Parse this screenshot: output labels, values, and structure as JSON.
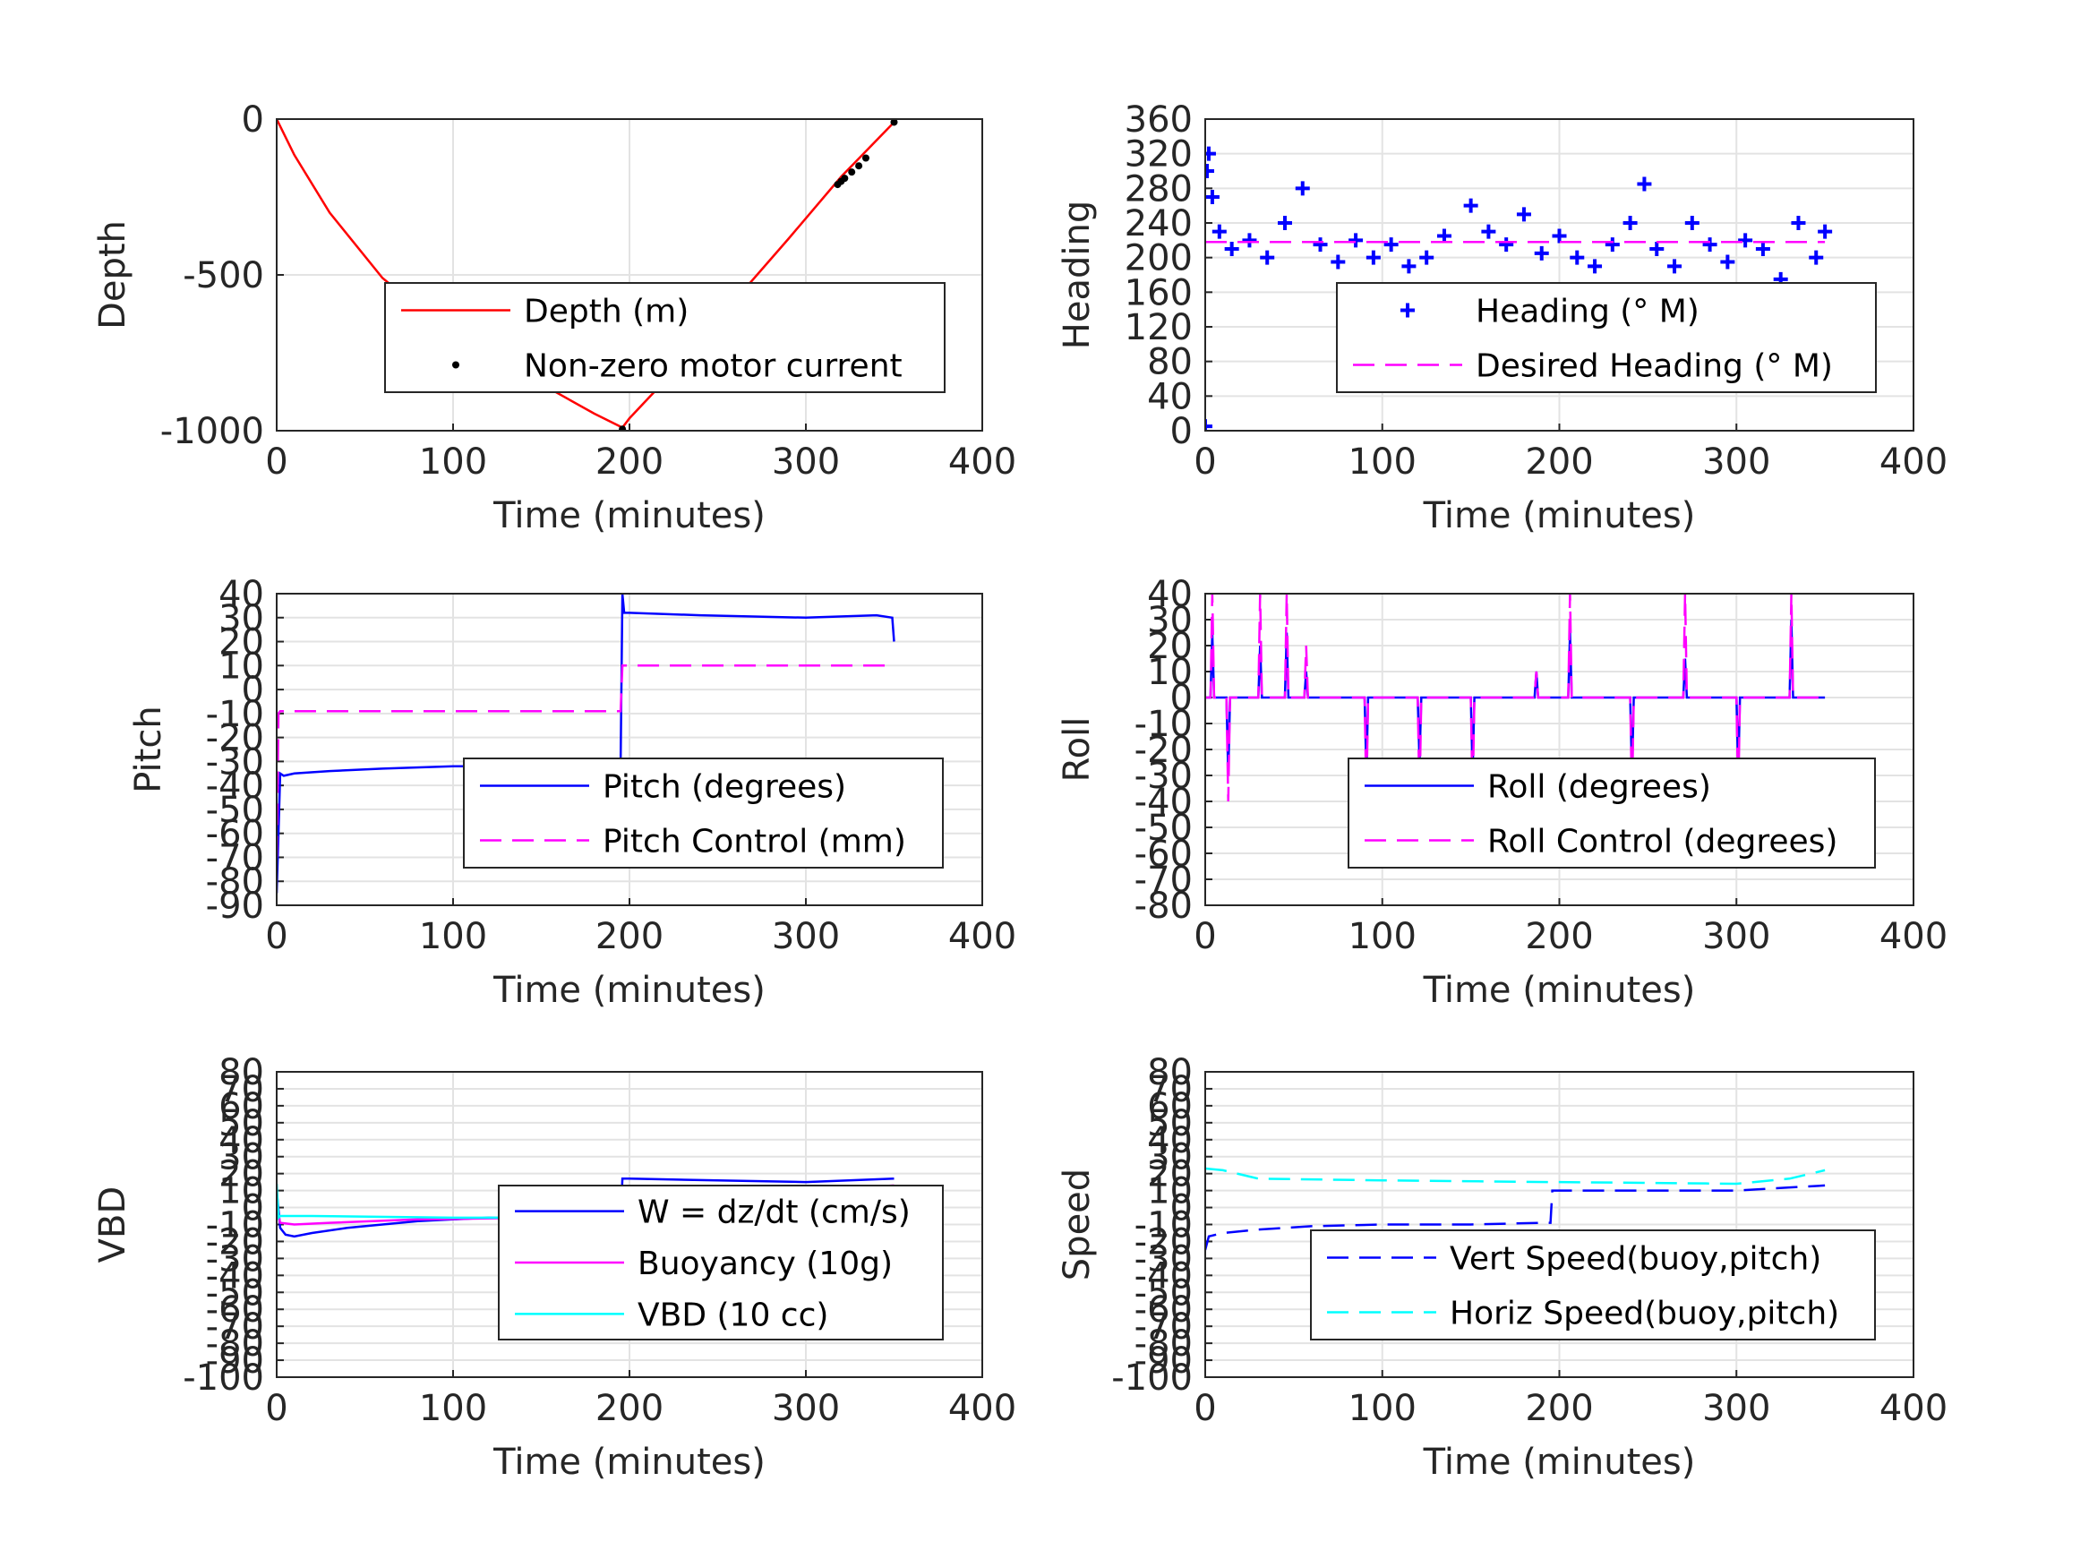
{
  "chart_data": [
    {
      "id": "depth",
      "type": "line",
      "xlabel": "Time (minutes)",
      "ylabel": "Depth",
      "xlim": [
        0,
        400
      ],
      "ylim": [
        -1000,
        0
      ],
      "xticks": [
        "0",
        "100",
        "200",
        "300",
        "400"
      ],
      "yticks": [
        "0",
        "-500",
        "-1000"
      ],
      "grid": true,
      "legend_position": "center-right",
      "series": [
        {
          "name": "Depth (m)",
          "style": "solid",
          "color": "#ff0000",
          "x": [
            0,
            10,
            30,
            60,
            90,
            120,
            150,
            180,
            196,
            200,
            230,
            260,
            290,
            320,
            350
          ],
          "y": [
            0,
            -115,
            -300,
            -510,
            -650,
            -760,
            -850,
            -945,
            -990,
            -960,
            -780,
            -580,
            -385,
            -185,
            -10
          ]
        },
        {
          "name": "Non-zero motor current",
          "style": "dot",
          "color": "#000000",
          "x": [
            196,
            318,
            320,
            322,
            326,
            330,
            334,
            350
          ],
          "y": [
            -995,
            -210,
            -200,
            -190,
            -170,
            -150,
            -125,
            -10
          ]
        }
      ]
    },
    {
      "id": "heading",
      "type": "scatter",
      "xlabel": "Time (minutes)",
      "ylabel": "Heading",
      "xlim": [
        0,
        400
      ],
      "ylim": [
        0,
        360
      ],
      "xticks": [
        "0",
        "100",
        "200",
        "300",
        "400"
      ],
      "yticks": [
        "0",
        "40",
        "80",
        "120",
        "160",
        "200",
        "240",
        "280",
        "320",
        "360"
      ],
      "grid": true,
      "legend_position": "lower-right",
      "series": [
        {
          "name": "Heading (° M)",
          "style": "plus",
          "color": "#0000ff",
          "x": [
            0,
            1,
            2,
            4,
            8,
            15,
            25,
            35,
            45,
            55,
            65,
            75,
            85,
            95,
            105,
            115,
            125,
            135,
            142,
            150,
            160,
            170,
            180,
            190,
            200,
            210,
            220,
            230,
            240,
            248,
            255,
            265,
            275,
            285,
            295,
            305,
            315,
            325,
            335,
            345,
            350,
            352
          ],
          "y": [
            5,
            300,
            320,
            270,
            230,
            210,
            220,
            200,
            240,
            280,
            215,
            195,
            220,
            200,
            215,
            190,
            200,
            225,
            150,
            260,
            230,
            215,
            250,
            205,
            225,
            200,
            190,
            215,
            240,
            285,
            210,
            190,
            240,
            215,
            195,
            220,
            210,
            175,
            240,
            200,
            230,
            160
          ]
        },
        {
          "name": "Desired Heading (° M)",
          "style": "dash",
          "color": "#ff00ff",
          "x": [
            0,
            350
          ],
          "y": [
            218,
            218
          ]
        }
      ]
    },
    {
      "id": "pitch",
      "type": "line",
      "xlabel": "Time (minutes)",
      "ylabel": "Pitch",
      "xlim": [
        0,
        400
      ],
      "ylim": [
        -90,
        40
      ],
      "xticks": [
        "0",
        "100",
        "200",
        "300",
        "400"
      ],
      "yticks": [
        "40",
        "30",
        "20",
        "10",
        "0",
        "-10",
        "-20",
        "-30",
        "-40",
        "-50",
        "-60",
        "-70",
        "-80",
        "-90"
      ],
      "grid": true,
      "legend_position": "center-right",
      "series": [
        {
          "name": "Pitch (degrees)",
          "style": "solid",
          "color": "#0000ff",
          "x": [
            0,
            1,
            2,
            4,
            10,
            30,
            60,
            100,
            150,
            190,
            195,
            196,
            197,
            200,
            240,
            300,
            340,
            349,
            350
          ],
          "y": [
            -85,
            -60,
            -35,
            -36,
            -35,
            -34,
            -33,
            -32,
            -32,
            -31,
            -31,
            40,
            32,
            32,
            31,
            30,
            31,
            30,
            20
          ]
        },
        {
          "name": "Pitch Control (mm)",
          "style": "dash",
          "color": "#ff00ff",
          "x": [
            0,
            1,
            2,
            100,
            195,
            196,
            200,
            300,
            350
          ],
          "y": [
            -70,
            -10,
            -9,
            -9,
            -9,
            10,
            10,
            10,
            10
          ]
        }
      ]
    },
    {
      "id": "roll",
      "type": "line",
      "xlabel": "Time (minutes)",
      "ylabel": "Roll",
      "xlim": [
        0,
        400
      ],
      "ylim": [
        -80,
        40
      ],
      "xticks": [
        "0",
        "100",
        "200",
        "300",
        "400"
      ],
      "yticks": [
        "40",
        "30",
        "20",
        "10",
        "0",
        "-10",
        "-20",
        "-30",
        "-40",
        "-50",
        "-60",
        "-70",
        "-80"
      ],
      "grid": true,
      "legend_position": "lower-right",
      "series": [
        {
          "name": "Roll (degrees)",
          "style": "solid",
          "color": "#0000ff",
          "x": [
            0,
            3,
            4,
            5,
            12,
            13,
            14,
            30,
            31,
            32,
            45,
            46,
            47,
            56,
            57,
            58,
            90,
            91,
            92,
            120,
            121,
            122,
            150,
            151,
            152,
            186,
            187,
            188,
            205,
            206,
            207,
            240,
            241,
            242,
            270,
            271,
            272,
            300,
            301,
            302,
            330,
            331,
            332,
            350
          ],
          "y": [
            0,
            0,
            25,
            0,
            0,
            -30,
            0,
            0,
            20,
            0,
            0,
            25,
            0,
            0,
            10,
            0,
            0,
            -30,
            0,
            0,
            -25,
            0,
            0,
            -30,
            0,
            0,
            10,
            0,
            0,
            25,
            0,
            0,
            -30,
            0,
            0,
            15,
            0,
            0,
            -30,
            0,
            0,
            30,
            0,
            0
          ]
        },
        {
          "name": "Roll Control (degrees)",
          "style": "dash",
          "color": "#ff00ff",
          "x": [
            0,
            3,
            4,
            5,
            12,
            13,
            14,
            30,
            31,
            32,
            45,
            46,
            47,
            56,
            57,
            58,
            90,
            91,
            92,
            120,
            121,
            122,
            150,
            151,
            152,
            186,
            187,
            188,
            205,
            206,
            207,
            240,
            241,
            242,
            270,
            271,
            272,
            300,
            301,
            302,
            330,
            331,
            332,
            350
          ],
          "y": [
            0,
            0,
            40,
            0,
            0,
            -40,
            0,
            0,
            40,
            0,
            0,
            40,
            0,
            0,
            20,
            0,
            0,
            -40,
            0,
            0,
            -40,
            0,
            0,
            -40,
            0,
            0,
            10,
            0,
            0,
            40,
            0,
            0,
            -40,
            0,
            0,
            40,
            0,
            0,
            -40,
            0,
            0,
            40,
            0,
            0
          ]
        }
      ]
    },
    {
      "id": "vbd",
      "type": "line",
      "xlabel": "Time (minutes)",
      "ylabel": "VBD",
      "xlim": [
        0,
        400
      ],
      "ylim": [
        -100,
        80
      ],
      "xticks": [
        "0",
        "100",
        "200",
        "300",
        "400"
      ],
      "yticks": [
        "80",
        "70",
        "60",
        "50",
        "40",
        "30",
        "20",
        "10",
        "0",
        "-10",
        "-20",
        "-30",
        "-40",
        "-50",
        "-60",
        "-70",
        "-80",
        "-90",
        "-100"
      ],
      "grid": true,
      "legend_position": "lower-right",
      "series": [
        {
          "name": "W = dz/dt (cm/s)",
          "style": "solid",
          "color": "#0000ff",
          "x": [
            0,
            2,
            5,
            10,
            20,
            40,
            80,
            120,
            160,
            195,
            196,
            200,
            250,
            300,
            350
          ],
          "y": [
            10,
            -12,
            -16,
            -17,
            -15,
            -12,
            -8,
            -6,
            -7,
            -8,
            17,
            17,
            16,
            15,
            17
          ]
        },
        {
          "name": "Buoyancy (10g)",
          "style": "solid",
          "color": "#ff00ff",
          "x": [
            0,
            2,
            10,
            30,
            80,
            150,
            195,
            196,
            250,
            300,
            320,
            350
          ],
          "y": [
            0,
            -9,
            -10,
            -9,
            -7,
            -6,
            -7,
            8,
            8,
            9,
            11,
            13
          ]
        },
        {
          "name": "VBD (10 cc)",
          "style": "solid",
          "color": "#00ffff",
          "x": [
            0,
            1,
            2,
            20,
            100,
            195,
            196,
            250,
            350
          ],
          "y": [
            14,
            -6,
            -5,
            -5,
            -6,
            -6,
            9,
            9,
            10
          ]
        }
      ]
    },
    {
      "id": "speed",
      "type": "line",
      "xlabel": "Time (minutes)",
      "ylabel": "Speed",
      "xlim": [
        0,
        400
      ],
      "ylim": [
        -100,
        80
      ],
      "xticks": [
        "0",
        "100",
        "200",
        "300",
        "400"
      ],
      "yticks": [
        "80",
        "70",
        "60",
        "50",
        "40",
        "30",
        "20",
        "10",
        "0",
        "-10",
        "-20",
        "-30",
        "-40",
        "-50",
        "-60",
        "-70",
        "-80",
        "-90",
        "-100"
      ],
      "grid": true,
      "legend_position": "lower-right",
      "series": [
        {
          "name": "Vert Speed(buoy,pitch)",
          "style": "dash",
          "color": "#0000ff",
          "x": [
            0,
            2,
            10,
            30,
            60,
            100,
            150,
            190,
            195,
            196,
            200,
            250,
            300,
            350
          ],
          "y": [
            -25,
            -17,
            -15,
            -13,
            -11,
            -10,
            -10,
            -9,
            -9,
            10,
            10,
            10,
            10,
            13
          ]
        },
        {
          "name": "Horiz Speed(buoy,pitch)",
          "style": "dash",
          "color": "#00ffff",
          "x": [
            0,
            10,
            30,
            100,
            195,
            200,
            300,
            330,
            350
          ],
          "y": [
            23,
            22,
            17,
            16,
            15,
            15,
            14,
            17,
            22
          ]
        }
      ]
    }
  ]
}
